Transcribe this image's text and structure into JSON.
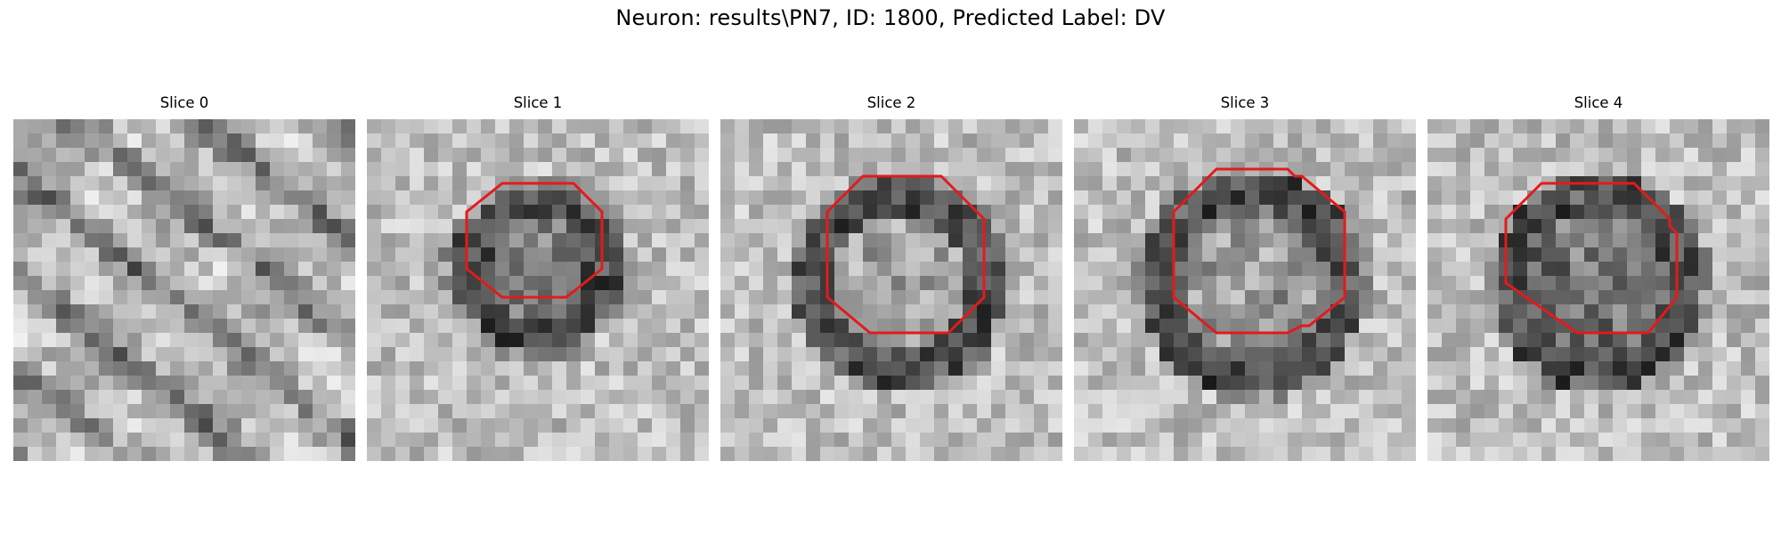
{
  "figure": {
    "title": "Neuron: results\\PN7, ID: 1800, Predicted Label: DV"
  },
  "panels": [
    {
      "title": "Slice 0",
      "contour": null
    },
    {
      "title": "Slice 1",
      "contour": "octagon"
    },
    {
      "title": "Slice 2",
      "contour": "octagon"
    },
    {
      "title": "Slice 3",
      "contour": "octagon"
    },
    {
      "title": "Slice 4",
      "contour": "octagon"
    }
  ],
  "colors": {
    "contour": "#e31a1c",
    "background": "#ffffff"
  }
}
